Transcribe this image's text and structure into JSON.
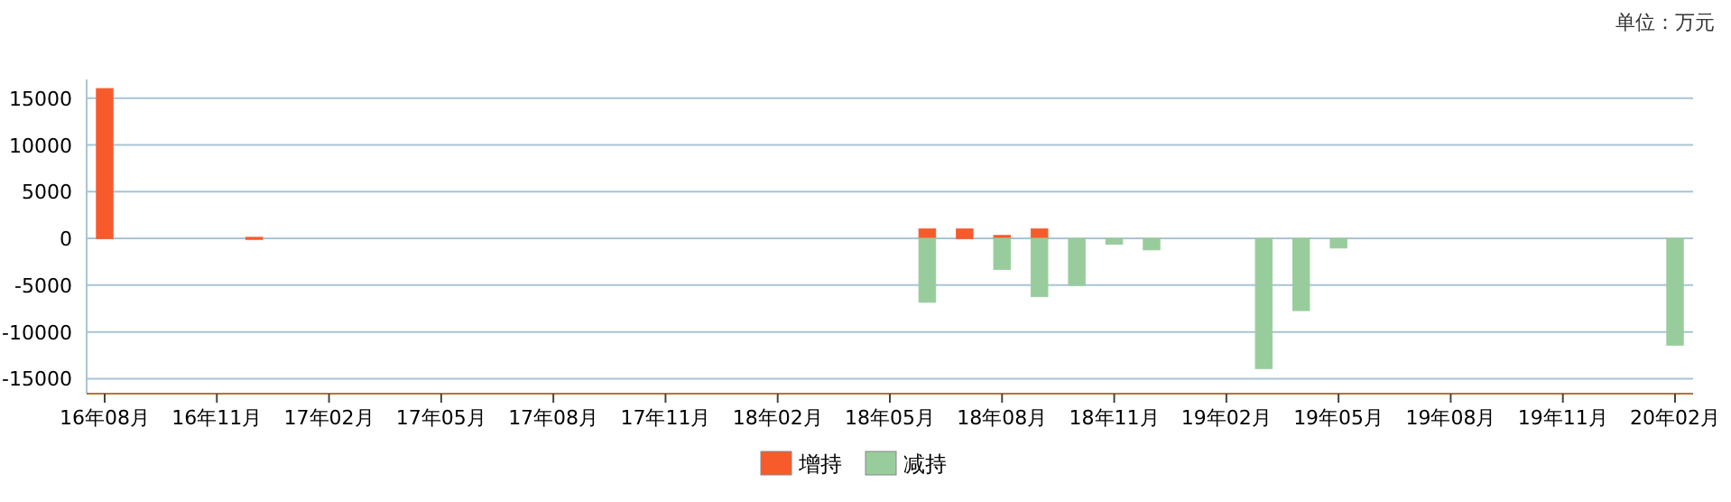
{
  "chart_data": {
    "type": "bar",
    "stacked": true,
    "grid": "y",
    "legend": "bottom",
    "annotations": [
      "单位：万元"
    ],
    "categories": [
      "16年08月",
      null,
      null,
      "16年11月",
      null,
      null,
      "17年02月",
      null,
      null,
      "17年05月",
      null,
      null,
      "17年08月",
      null,
      null,
      "17年11月",
      null,
      null,
      "18年02月",
      null,
      null,
      "18年05月",
      null,
      null,
      "18年08月",
      null,
      null,
      "18年11月",
      null,
      null,
      "19年02月",
      null,
      null,
      "19年05月",
      null,
      null,
      "19年08月",
      null,
      null,
      "19年11月",
      null,
      null,
      "20年02月"
    ],
    "ylim": [
      -16600,
      17000
    ],
    "yticks": [
      -15000,
      -10000,
      -5000,
      0,
      5000,
      10000,
      15000
    ],
    "series": [
      {
        "name": "增持",
        "color": "#f75b2c",
        "values": [
          16000,
          null,
          null,
          null,
          100,
          null,
          null,
          null,
          null,
          null,
          null,
          null,
          null,
          null,
          null,
          null,
          null,
          null,
          null,
          null,
          null,
          null,
          1000,
          1000,
          300,
          1000,
          null,
          null,
          null,
          null,
          null,
          null,
          null,
          null,
          null,
          null,
          null,
          null,
          null,
          null,
          null,
          null,
          null
        ]
      },
      {
        "name": "减持",
        "color": "#99cc9c",
        "values": [
          null,
          null,
          null,
          null,
          null,
          null,
          null,
          null,
          null,
          null,
          null,
          null,
          null,
          null,
          null,
          null,
          null,
          null,
          null,
          null,
          null,
          null,
          -6800,
          null,
          -3300,
          -6200,
          -5000,
          -600,
          -1200,
          null,
          null,
          -13900,
          -7700,
          -1000,
          null,
          null,
          null,
          null,
          null,
          null,
          null,
          null,
          -11400
        ]
      }
    ]
  }
}
